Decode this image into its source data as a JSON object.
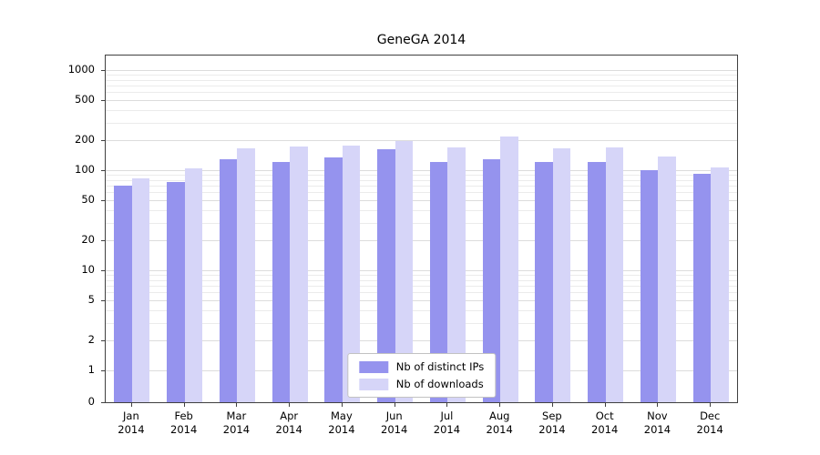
{
  "chart_data": {
    "type": "bar",
    "title": "GeneGA 2014",
    "categories": [
      "Jan",
      "Feb",
      "Mar",
      "Apr",
      "May",
      "Jun",
      "Jul",
      "Aug",
      "Sep",
      "Oct",
      "Nov",
      "Dec"
    ],
    "category_sub_label": "2014",
    "series": [
      {
        "name": "Nb of distinct IPs",
        "color": "#9593ee",
        "values": [
          70,
          76,
          130,
          122,
          134,
          162,
          121,
          130,
          121,
          121,
          100,
          92
        ]
      },
      {
        "name": "Nb of downloads",
        "color": "#d6d5f8",
        "values": [
          83,
          105,
          165,
          172,
          177,
          196,
          168,
          215,
          165,
          168,
          138,
          107
        ]
      }
    ],
    "yticks": [
      0,
      1,
      2,
      5,
      10,
      20,
      50,
      100,
      200,
      500,
      1000
    ],
    "scale": "log",
    "ylim": [
      0,
      1000
    ],
    "grid": true,
    "legend_position": "bottom-center"
  },
  "colors": {
    "axis": "#404040",
    "grid_major": "#dcdcdc",
    "grid_minor": "#ebebeb",
    "background": "#ffffff",
    "text": "#000000"
  }
}
